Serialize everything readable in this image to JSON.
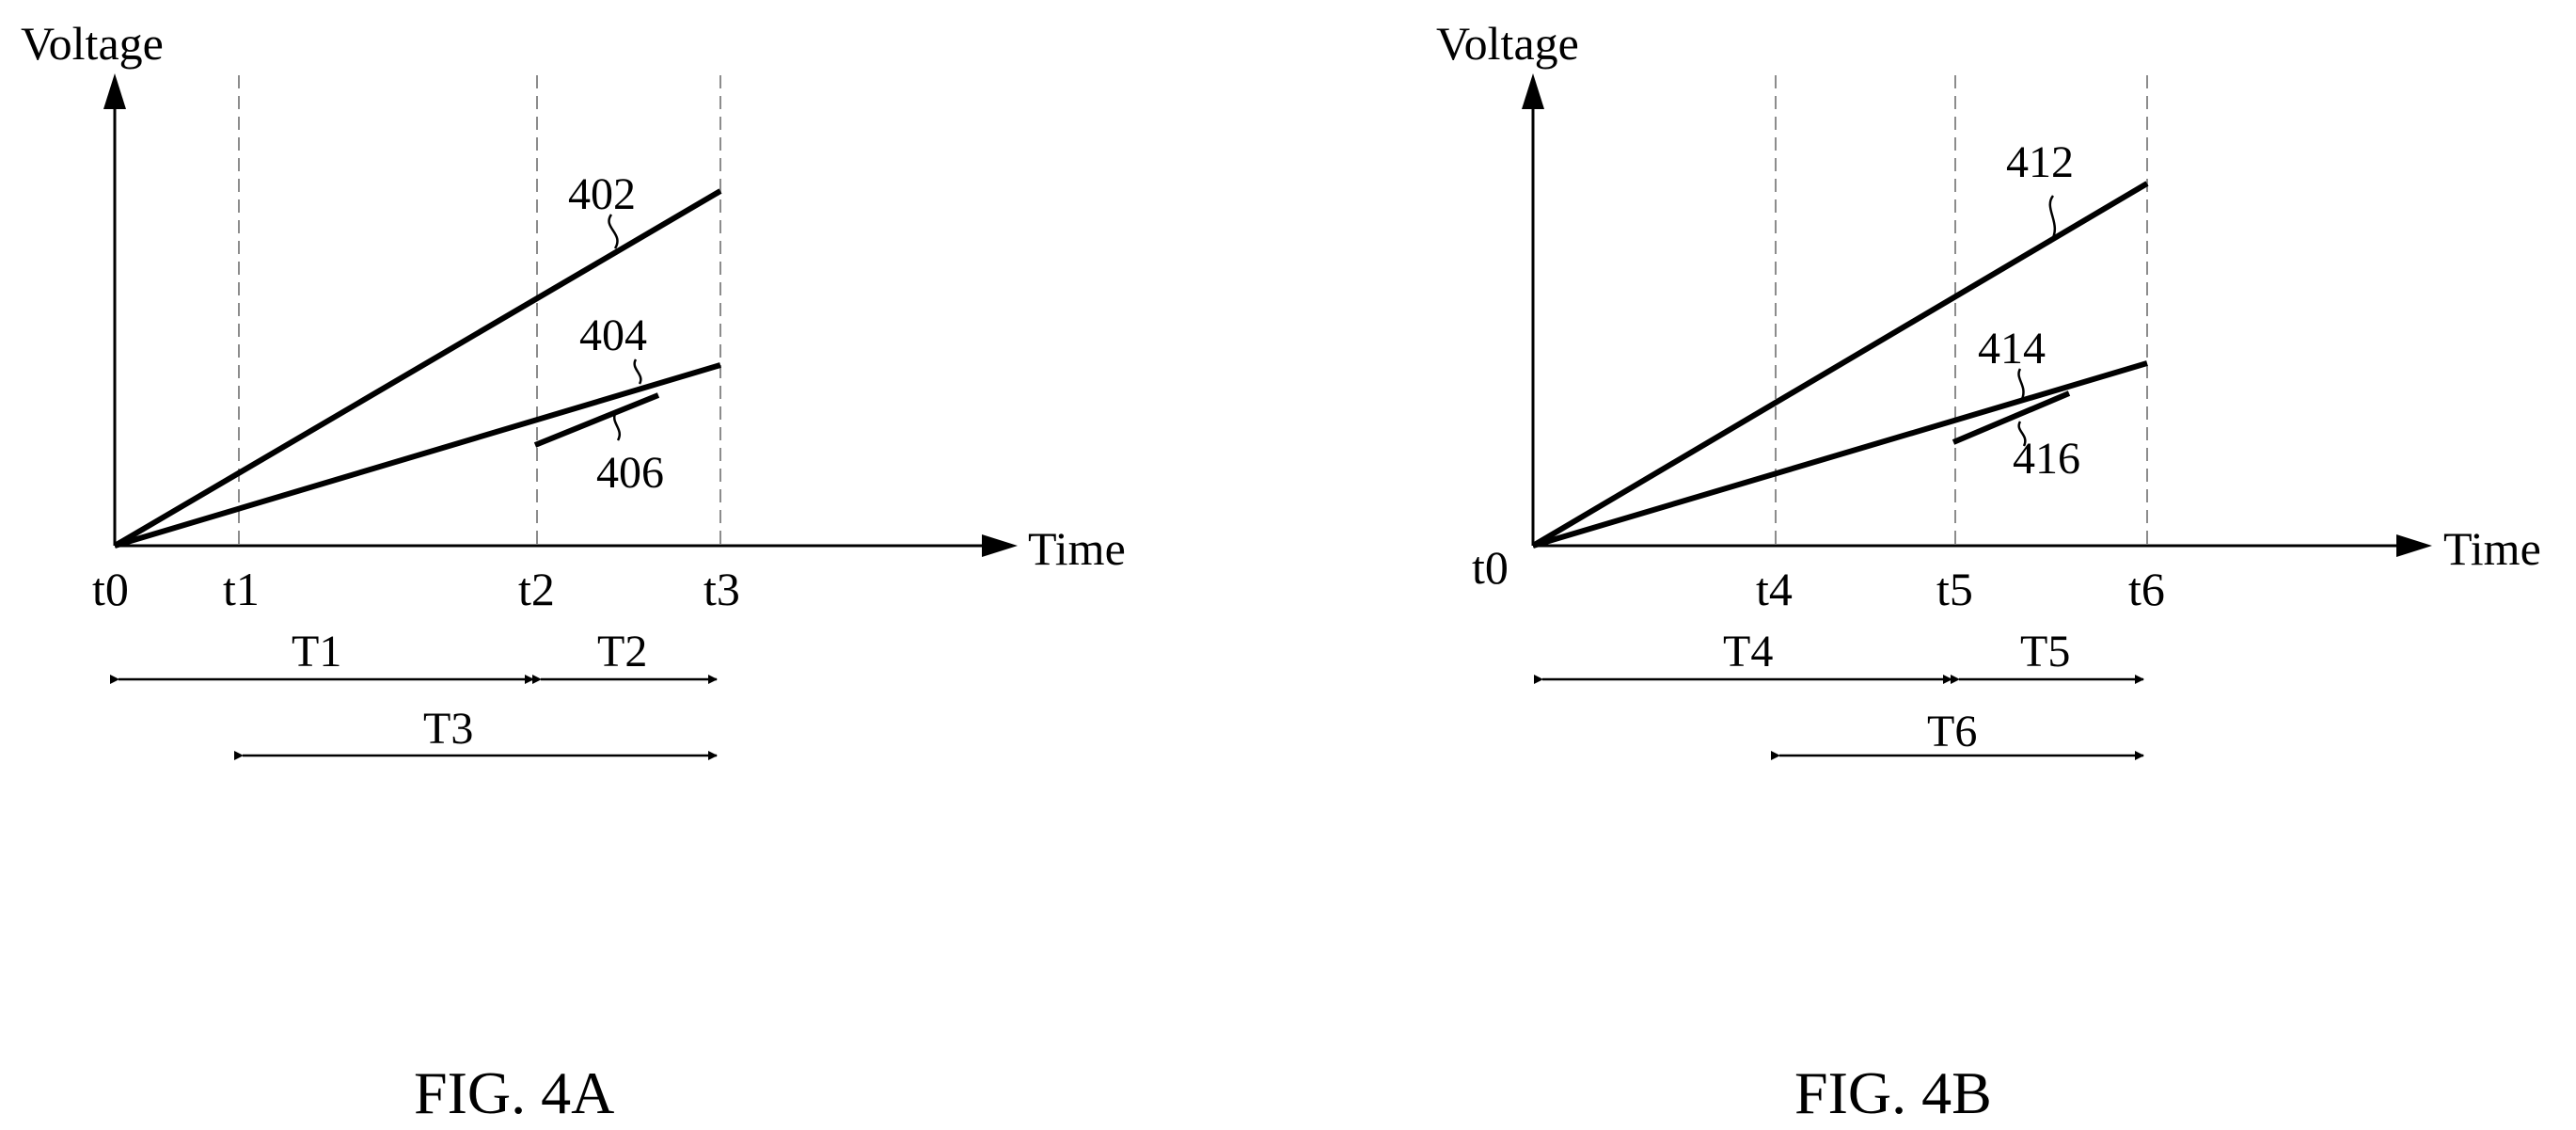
{
  "figures": [
    {
      "caption": "FIG. 4A",
      "y_axis_label": "Voltage",
      "x_axis_label": "Time",
      "ticks": [
        "t0",
        "t1",
        "t2",
        "t3"
      ],
      "lines": [
        {
          "ref": "402",
          "from": "t0",
          "to": "t3",
          "level": "high"
        },
        {
          "ref": "404",
          "from": "t0",
          "to": "t3",
          "level": "low"
        },
        {
          "ref": "406",
          "from": "t2",
          "to": "t3",
          "level": "low"
        }
      ],
      "durations": [
        {
          "label": "T1",
          "from": "t0",
          "to": "t2"
        },
        {
          "label": "T2",
          "from": "t2",
          "to": "t3"
        },
        {
          "label": "T3",
          "from": "t1",
          "to": "t3"
        }
      ]
    },
    {
      "caption": "FIG. 4B",
      "y_axis_label": "Voltage",
      "x_axis_label": "Time",
      "ticks": [
        "t0",
        "t4",
        "t5",
        "t6"
      ],
      "lines": [
        {
          "ref": "412",
          "from": "t0",
          "to": "t6",
          "level": "high"
        },
        {
          "ref": "414",
          "from": "t0",
          "to": "t6",
          "level": "low"
        },
        {
          "ref": "416",
          "from": "t5",
          "to": "t6",
          "level": "low"
        }
      ],
      "durations": [
        {
          "label": "T4",
          "from": "t0",
          "to": "t5"
        },
        {
          "label": "T5",
          "from": "t5",
          "to": "t6"
        },
        {
          "label": "T6",
          "from": "t4",
          "to": "t6"
        }
      ]
    }
  ],
  "colors": {
    "ink": "#000000",
    "dash": "#8c8c8c",
    "background": "#ffffff"
  }
}
